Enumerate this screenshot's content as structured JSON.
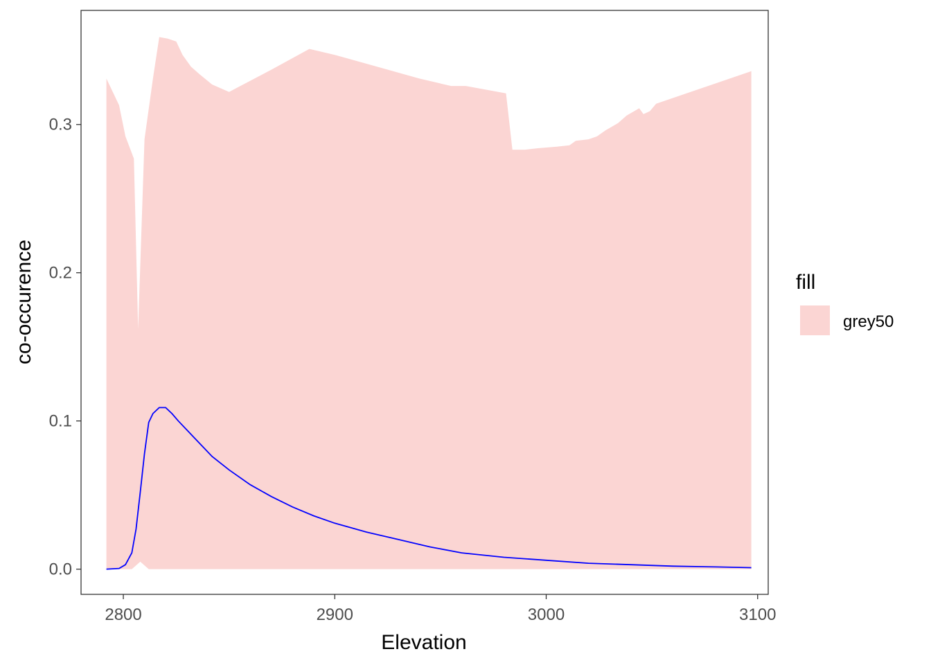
{
  "chart_data": {
    "type": "area",
    "title": "",
    "xlabel": "Elevation",
    "ylabel": "co-occurence",
    "xlim": [
      2780,
      3105
    ],
    "ylim": [
      -0.017,
      0.377
    ],
    "x_ticks": [
      2800,
      2900,
      3000,
      3100
    ],
    "x_tick_labels": [
      "2800",
      "2900",
      "3000",
      "3100"
    ],
    "y_ticks": [
      0.0,
      0.1,
      0.2,
      0.3
    ],
    "y_tick_labels": [
      "0.0",
      "0.1",
      "0.2",
      "0.3"
    ],
    "grid": false,
    "legend": {
      "title": "fill",
      "position": "right",
      "entries": [
        {
          "label": "grey50",
          "color": "#FBD5D3"
        }
      ]
    },
    "ribbon": {
      "fill": "#FBD5D3",
      "upper": [
        {
          "x": 2792,
          "y": 0.331
        },
        {
          "x": 2798,
          "y": 0.313
        },
        {
          "x": 2801,
          "y": 0.292
        },
        {
          "x": 2805,
          "y": 0.277
        },
        {
          "x": 2807,
          "y": 0.162
        },
        {
          "x": 2810,
          "y": 0.29
        },
        {
          "x": 2814,
          "y": 0.331
        },
        {
          "x": 2817,
          "y": 0.359
        },
        {
          "x": 2821,
          "y": 0.358
        },
        {
          "x": 2825,
          "y": 0.356
        },
        {
          "x": 2828,
          "y": 0.347
        },
        {
          "x": 2832,
          "y": 0.339
        },
        {
          "x": 2836,
          "y": 0.334
        },
        {
          "x": 2842,
          "y": 0.327
        },
        {
          "x": 2850,
          "y": 0.322
        },
        {
          "x": 2870,
          "y": 0.337
        },
        {
          "x": 2888,
          "y": 0.351
        },
        {
          "x": 2900,
          "y": 0.347
        },
        {
          "x": 2920,
          "y": 0.339
        },
        {
          "x": 2940,
          "y": 0.331
        },
        {
          "x": 2955,
          "y": 0.326
        },
        {
          "x": 2962,
          "y": 0.326
        },
        {
          "x": 2981,
          "y": 0.321
        },
        {
          "x": 2984,
          "y": 0.283
        },
        {
          "x": 2990,
          "y": 0.283
        },
        {
          "x": 2996,
          "y": 0.284
        },
        {
          "x": 3005,
          "y": 0.285
        },
        {
          "x": 3011,
          "y": 0.286
        },
        {
          "x": 3014,
          "y": 0.289
        },
        {
          "x": 3020,
          "y": 0.29
        },
        {
          "x": 3024,
          "y": 0.292
        },
        {
          "x": 3028,
          "y": 0.296
        },
        {
          "x": 3034,
          "y": 0.301
        },
        {
          "x": 3038,
          "y": 0.306
        },
        {
          "x": 3044,
          "y": 0.311
        },
        {
          "x": 3046,
          "y": 0.307
        },
        {
          "x": 3049,
          "y": 0.309
        },
        {
          "x": 3052,
          "y": 0.314
        },
        {
          "x": 3097,
          "y": 0.336
        }
      ],
      "lower": [
        {
          "x": 2792,
          "y": 0.0
        },
        {
          "x": 2804,
          "y": 0.0
        },
        {
          "x": 2808,
          "y": 0.005
        },
        {
          "x": 2812,
          "y": 0.0
        },
        {
          "x": 3097,
          "y": 0.0
        }
      ]
    },
    "series": [
      {
        "color": "#0000FF",
        "x": [
          2792,
          2798,
          2801,
          2804,
          2806,
          2808,
          2810,
          2812,
          2814,
          2817,
          2820,
          2823,
          2826,
          2830,
          2836,
          2842,
          2850,
          2860,
          2870,
          2880,
          2890,
          2900,
          2915,
          2930,
          2945,
          2960,
          2980,
          3000,
          3020,
          3040,
          3060,
          3080,
          3097
        ],
        "y": [
          0.0,
          0.0005,
          0.003,
          0.011,
          0.027,
          0.052,
          0.078,
          0.099,
          0.105,
          0.109,
          0.109,
          0.105,
          0.1,
          0.094,
          0.085,
          0.076,
          0.067,
          0.057,
          0.049,
          0.042,
          0.036,
          0.031,
          0.025,
          0.02,
          0.015,
          0.011,
          0.008,
          0.006,
          0.004,
          0.003,
          0.002,
          0.0015,
          0.001
        ]
      }
    ]
  }
}
